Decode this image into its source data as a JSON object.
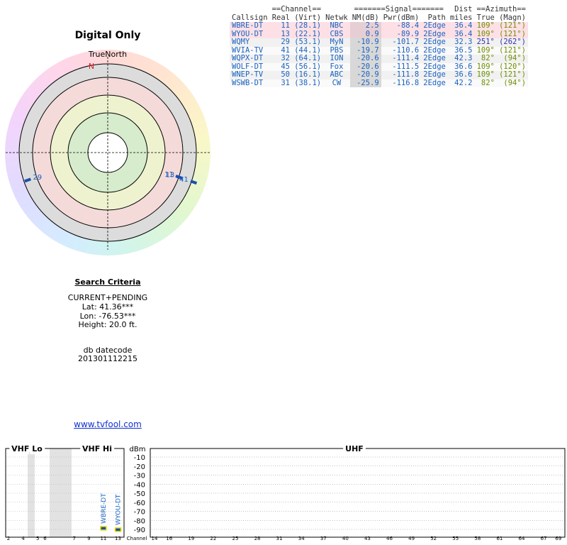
{
  "report": {
    "title": "Digital Only",
    "north_label": "TrueNorth",
    "north_marker": "N"
  },
  "polar": {
    "markers": [
      {
        "label": "11",
        "azimuth": 109,
        "nm": 2.5
      },
      {
        "label": "13",
        "azimuth": 109,
        "nm": 0.9
      },
      {
        "label": "29",
        "azimuth": 251,
        "nm": -10.9
      },
      {
        "label": "41",
        "azimuth": 109,
        "nm": -19.7
      }
    ]
  },
  "search": {
    "heading": "Search Criteria",
    "mode": "CURRENT+PENDING",
    "lat": "Lat: 41.36***",
    "lon": "Lon: -76.53***",
    "height": "Height: 20.0 ft.",
    "datecode_label": "db datecode",
    "datecode": "201301112215",
    "link": "www.tvfool.com"
  },
  "table": {
    "group_headers": [
      "==Channel==",
      "=======Signal=======",
      "Dist",
      "==Azimuth=="
    ],
    "columns": [
      "Callsign",
      "Real",
      "(Virt)",
      "Netwk",
      "NM(dB)",
      "Pwr(dBm)",
      "Path",
      "miles",
      "True",
      "(Magn)"
    ],
    "rows": [
      [
        "WBRE-DT",
        11,
        "(28.1)",
        "NBC",
        2.5,
        -88.4,
        "2Edge",
        36.4,
        "109°",
        "(121°)"
      ],
      [
        "WYOU-DT",
        13,
        "(22.1)",
        "CBS",
        0.9,
        -89.9,
        "2Edge",
        36.4,
        "109°",
        "(121°)"
      ],
      [
        "WQMY",
        29,
        "(53.1)",
        "MyN",
        -10.9,
        -101.7,
        "2Edge",
        32.3,
        "251°",
        "(262°)"
      ],
      [
        "WVIA-TV",
        41,
        "(44.1)",
        "PBS",
        -19.7,
        -110.6,
        "2Edge",
        36.5,
        "109°",
        "(121°)"
      ],
      [
        "WQPX-DT",
        32,
        "(64.1)",
        "ION",
        -20.6,
        -111.4,
        "2Edge",
        42.3,
        "82°",
        "(94°)"
      ],
      [
        "WOLF-DT",
        45,
        "(56.1)",
        "Fox",
        -20.6,
        -111.5,
        "2Edge",
        36.6,
        "109°",
        "(120°)"
      ],
      [
        "WNEP-TV",
        50,
        "(16.1)",
        "ABC",
        -20.9,
        -111.8,
        "2Edge",
        36.6,
        "109°",
        "(121°)"
      ],
      [
        "WSWB-DT",
        31,
        "(38.1)",
        "CW",
        -25.9,
        -116.8,
        "2Edge",
        42.2,
        "82°",
        "(94°)"
      ]
    ]
  },
  "spectrum": {
    "vhf_lo": "VHF Lo",
    "vhf_hi": "VHF Hi",
    "uhf": "UHF",
    "unit": "dBm",
    "channel_label": "Channel",
    "ylim": [
      -100,
      0
    ],
    "yticks": [
      -10,
      -20,
      -30,
      -40,
      -50,
      -60,
      -70,
      -80,
      -90
    ],
    "vhf_ticks": [
      2,
      4,
      5,
      6,
      7,
      9,
      11,
      13
    ],
    "uhf_ticks": [
      14,
      16,
      19,
      22,
      25,
      28,
      31,
      34,
      37,
      40,
      43,
      46,
      49,
      52,
      55,
      58,
      61,
      64,
      67,
      69
    ],
    "signals": [
      {
        "name": "WBRE-DT",
        "channel": 11,
        "value": -88.4
      },
      {
        "name": "WYOU-DT",
        "channel": 13,
        "value": -89.9
      }
    ]
  }
}
